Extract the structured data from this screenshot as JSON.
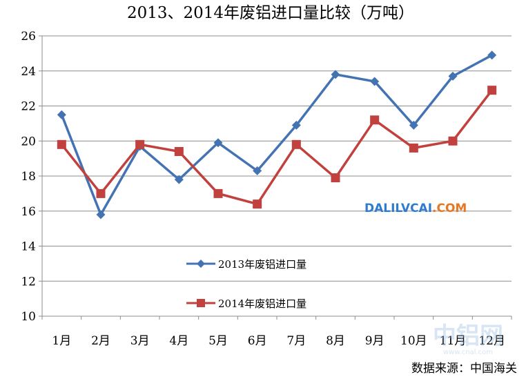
{
  "chart_data": {
    "type": "line",
    "title": "2013、2014年废铝进口量比较（万吨）",
    "categories": [
      "1月",
      "2月",
      "3月",
      "4月",
      "5月",
      "6月",
      "7月",
      "8月",
      "9月",
      "10月",
      "11月",
      "12月"
    ],
    "series": [
      {
        "name": "2013年废铝进口量",
        "color": "#4473B3",
        "marker": "diamond",
        "values": [
          21.5,
          15.8,
          19.7,
          17.8,
          19.9,
          18.3,
          20.9,
          23.8,
          23.4,
          20.9,
          23.7,
          24.9
        ]
      },
      {
        "name": "2014年废铝进口量",
        "color": "#C0413D",
        "marker": "square",
        "values": [
          19.8,
          17.0,
          19.8,
          19.4,
          17.0,
          16.4,
          19.8,
          17.9,
          21.2,
          19.6,
          20.0,
          22.9
        ]
      }
    ],
    "yticks": [
      "10",
      "12",
      "14",
      "16",
      "18",
      "20",
      "22",
      "24",
      "26"
    ],
    "ylim": [
      10,
      26
    ],
    "grid": true,
    "legend_position": "bottom-center"
  },
  "watermark": {
    "dali_text": "DALILVCAI",
    "dali_suffix": ".COM",
    "dali_color": "#2F7BD0",
    "dali_suffix_color": "#E87722",
    "logo_text": "中铝网",
    "logo_url": "www.cnal.com"
  },
  "source_note": "数据来源：中国海关"
}
